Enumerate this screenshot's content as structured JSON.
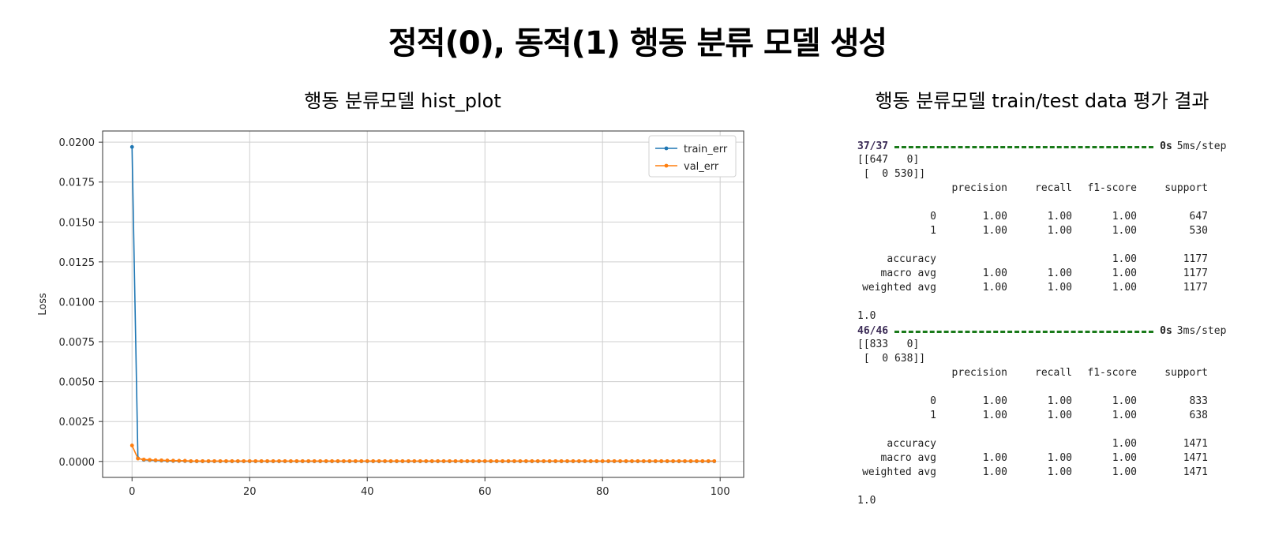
{
  "title": "정적(0), 동적(1) 행동 분류 모델 생성",
  "chart_subtitle": "행동 분류모델 hist_plot",
  "results_subtitle": "행동 분류모델 train/test data 평가 결과",
  "chart_data": {
    "type": "line",
    "title": "",
    "xlabel": "",
    "ylabel": "Loss",
    "xlim": [
      -5,
      104
    ],
    "ylim": [
      -0.001,
      0.0207
    ],
    "xticks": [
      "0",
      "20",
      "40",
      "60",
      "80",
      "100"
    ],
    "yticks": [
      "0.0000",
      "0.0025",
      "0.0050",
      "0.0075",
      "0.0100",
      "0.0125",
      "0.0150",
      "0.0175",
      "0.0200"
    ],
    "grid": true,
    "legend": "top-right",
    "epochs": 100,
    "series": [
      {
        "name": "train_err",
        "color": "#1f77b4",
        "head": [
          0.0197,
          0.0002,
          0.0001,
          8e-05,
          6e-05,
          5e-05,
          4e-05,
          3e-05,
          3e-05,
          2e-05
        ],
        "tail_value": 1e-05
      },
      {
        "name": "val_err",
        "color": "#ff7f0e",
        "head": [
          0.001,
          0.00018,
          0.00012,
          0.0001,
          8e-05,
          7e-05,
          6e-05,
          5e-05,
          4e-05,
          4e-05
        ],
        "tail_value": 2e-05
      }
    ]
  },
  "results": [
    {
      "step": "37/37",
      "time": "0s",
      "rate": "5ms/step",
      "matrix": [
        "[[647   0]",
        " [  0 530]]"
      ],
      "header": [
        "",
        "precision",
        "recall",
        "f1-score",
        "support"
      ],
      "rows": [
        [
          "0",
          "1.00",
          "1.00",
          "1.00",
          "647"
        ],
        [
          "1",
          "1.00",
          "1.00",
          "1.00",
          "530"
        ]
      ],
      "summary": [
        [
          "accuracy",
          "",
          "",
          "1.00",
          "1177"
        ],
        [
          "macro avg",
          "1.00",
          "1.00",
          "1.00",
          "1177"
        ],
        [
          "weighted avg",
          "1.00",
          "1.00",
          "1.00",
          "1177"
        ]
      ],
      "score": "1.0"
    },
    {
      "step": "46/46",
      "time": "0s",
      "rate": "3ms/step",
      "matrix": [
        "[[833   0]",
        " [  0 638]]"
      ],
      "header": [
        "",
        "precision",
        "recall",
        "f1-score",
        "support"
      ],
      "rows": [
        [
          "0",
          "1.00",
          "1.00",
          "1.00",
          "833"
        ],
        [
          "1",
          "1.00",
          "1.00",
          "1.00",
          "638"
        ]
      ],
      "summary": [
        [
          "accuracy",
          "",
          "",
          "1.00",
          "1471"
        ],
        [
          "macro avg",
          "1.00",
          "1.00",
          "1.00",
          "1471"
        ],
        [
          "weighted avg",
          "1.00",
          "1.00",
          "1.00",
          "1471"
        ]
      ],
      "score": "1.0"
    }
  ]
}
